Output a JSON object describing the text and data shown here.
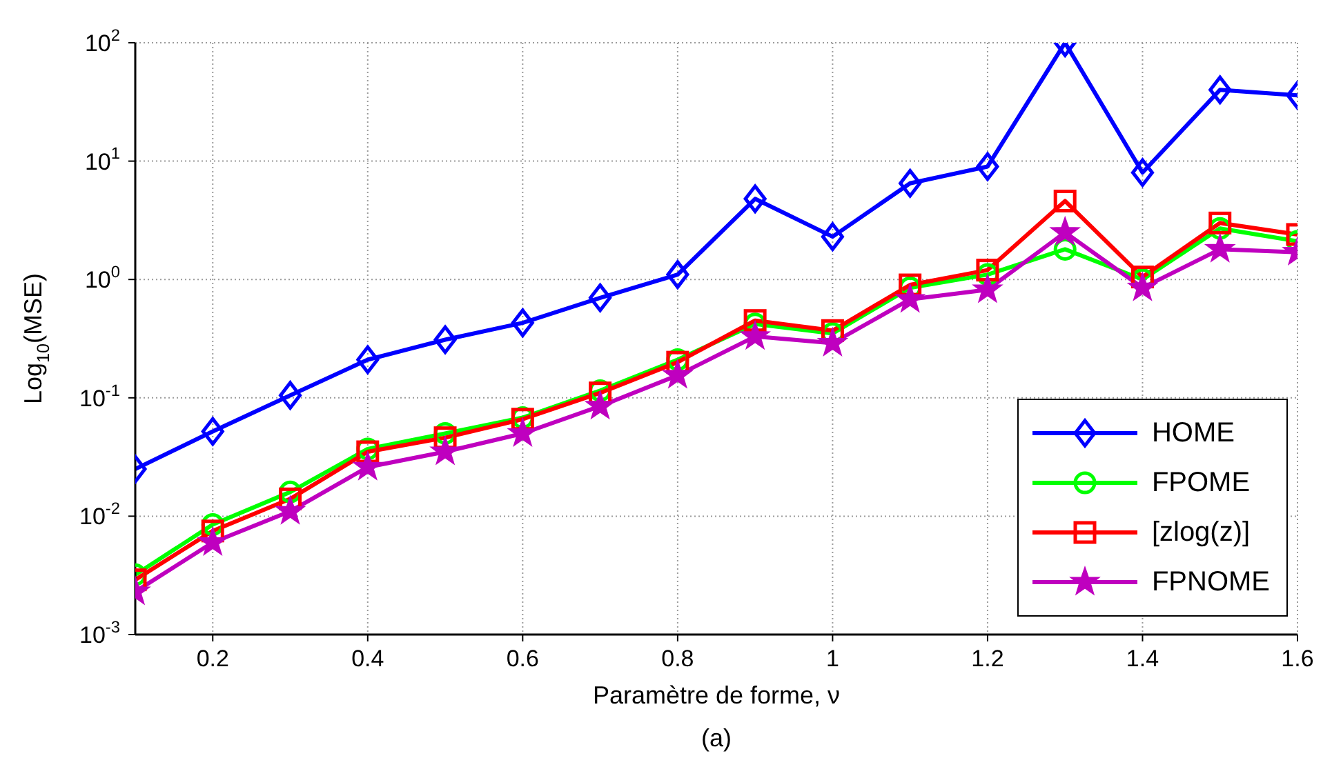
{
  "chart_data": {
    "type": "line",
    "xlabel": "Paramètre de forme, ν",
    "ylabel": "Log$_{10}$(MSE)",
    "annotations": [
      "(a)"
    ],
    "log": "y",
    "grid": true,
    "legend": "bottom right",
    "line_style": "solid",
    "x": [
      0.1,
      0.2,
      0.3,
      0.4,
      0.5,
      0.6,
      0.7,
      0.8,
      0.9,
      1.0,
      1.1,
      1.2,
      1.3,
      1.4,
      1.5,
      1.6
    ],
    "xlim": [
      0.1,
      1.6
    ],
    "xticks": [
      0.2,
      0.4,
      0.6,
      0.8,
      1,
      1.2,
      1.4,
      1.6
    ],
    "ylim": [
      0.001,
      100
    ],
    "yticks": [
      {
        "value": 0.001,
        "label": "10$^{-3}$"
      },
      {
        "value": 0.01,
        "label": "10$^{-2}$"
      },
      {
        "value": 0.1,
        "label": "10$^{-1}$"
      },
      {
        "value": 1,
        "label": "10$^{0}$"
      },
      {
        "value": 10,
        "label": "10$^{1}$"
      },
      {
        "value": 100,
        "label": "10$^{2}$"
      }
    ],
    "series": [
      {
        "name": "HOME",
        "color": "#0000ff",
        "marker": "diamond",
        "values": [
          0.025,
          0.052,
          0.105,
          0.21,
          0.31,
          0.43,
          0.7,
          1.1,
          4.8,
          2.3,
          6.5,
          9,
          100,
          8,
          40,
          36
        ]
      },
      {
        "name": "FPOME",
        "color": "#00ff00",
        "marker": "circle",
        "values": [
          0.0032,
          0.0085,
          0.016,
          0.037,
          0.05,
          0.068,
          0.115,
          0.21,
          0.42,
          0.35,
          0.85,
          1.1,
          1.8,
          1.0,
          2.7,
          2.1
        ]
      },
      {
        "name": "[zlog(z)]",
        "color": "#ff0000",
        "marker": "square",
        "values": [
          0.0029,
          0.0075,
          0.014,
          0.035,
          0.046,
          0.066,
          0.11,
          0.2,
          0.45,
          0.37,
          0.9,
          1.2,
          4.6,
          1.05,
          3.0,
          2.4
        ]
      },
      {
        "name": "FPNOME",
        "color": "#bf00bf",
        "marker": "star",
        "values": [
          0.0023,
          0.006,
          0.011,
          0.026,
          0.035,
          0.05,
          0.085,
          0.155,
          0.33,
          0.29,
          0.68,
          0.82,
          2.5,
          0.85,
          1.8,
          1.7
        ]
      }
    ]
  }
}
